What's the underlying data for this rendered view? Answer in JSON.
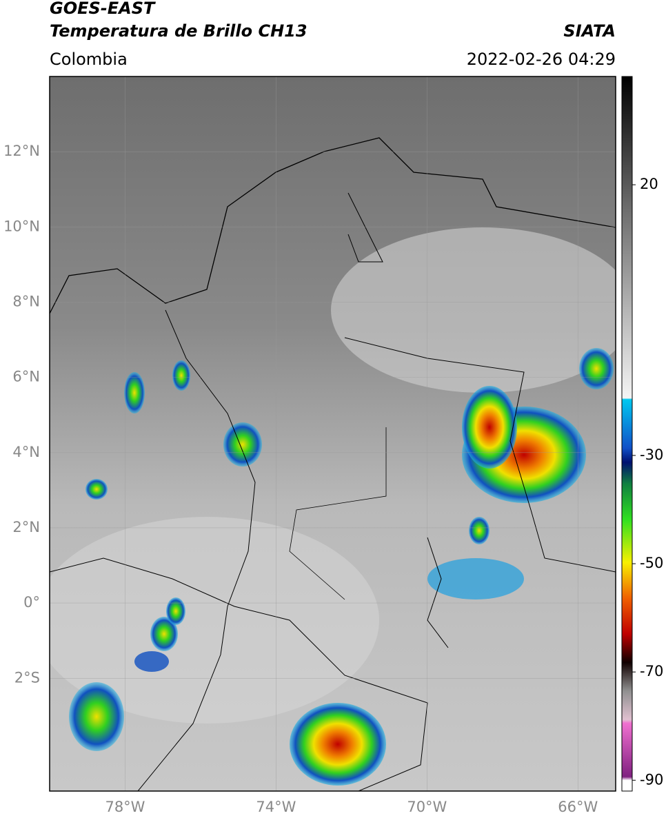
{
  "header": {
    "title": "GOES-EAST",
    "subtitle": "Temperatura de Brillo CH13",
    "region": "Colombia",
    "source": "SIATA",
    "datetime": "2022-02-26 04:29"
  },
  "map": {
    "latlim": [
      -5,
      14
    ],
    "lonlim": [
      -80,
      -65
    ],
    "lat_ticks": [
      {
        "value": 12,
        "label": "12°N"
      },
      {
        "value": 10,
        "label": "10°N"
      },
      {
        "value": 8,
        "label": "8°N"
      },
      {
        "value": 6,
        "label": "6°N"
      },
      {
        "value": 4,
        "label": "4°N"
      },
      {
        "value": 2,
        "label": "2°N"
      },
      {
        "value": 0,
        "label": "0°"
      },
      {
        "value": -2,
        "label": "2°S"
      }
    ],
    "lon_ticks": [
      {
        "value": -78,
        "label": "78°W"
      },
      {
        "value": -74,
        "label": "74°W"
      },
      {
        "value": -70,
        "label": "70°W"
      },
      {
        "value": -66,
        "label": "66°W"
      }
    ]
  },
  "colorbar": {
    "range": [
      -92,
      40
    ],
    "ticks": [
      20,
      -30,
      -50,
      -70,
      -90
    ]
  }
}
